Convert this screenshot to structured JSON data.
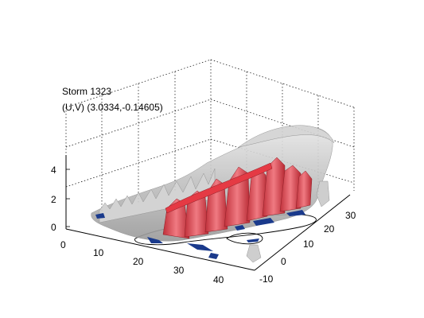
{
  "figure": {
    "title_line1": "Storm 1323",
    "title_line2": "(U,V) (3.0334,-0.14605)"
  },
  "chart_data": {
    "type": "3d-isosurface",
    "title": "Storm 1323",
    "subtitle": "(U,V) (3.0334,-0.14605)",
    "x_axis": {
      "ticks": [
        0,
        10,
        20,
        30,
        40
      ]
    },
    "y_axis": {
      "ticks": [
        -10,
        0,
        10,
        20,
        30
      ]
    },
    "z_axis": {
      "ticks": [
        0,
        2,
        4
      ]
    },
    "grid": true,
    "colors": {
      "outer_surface": "#bdbdbd",
      "core_surface": "#d9505a",
      "base_contour": "#1a3a8c"
    }
  }
}
